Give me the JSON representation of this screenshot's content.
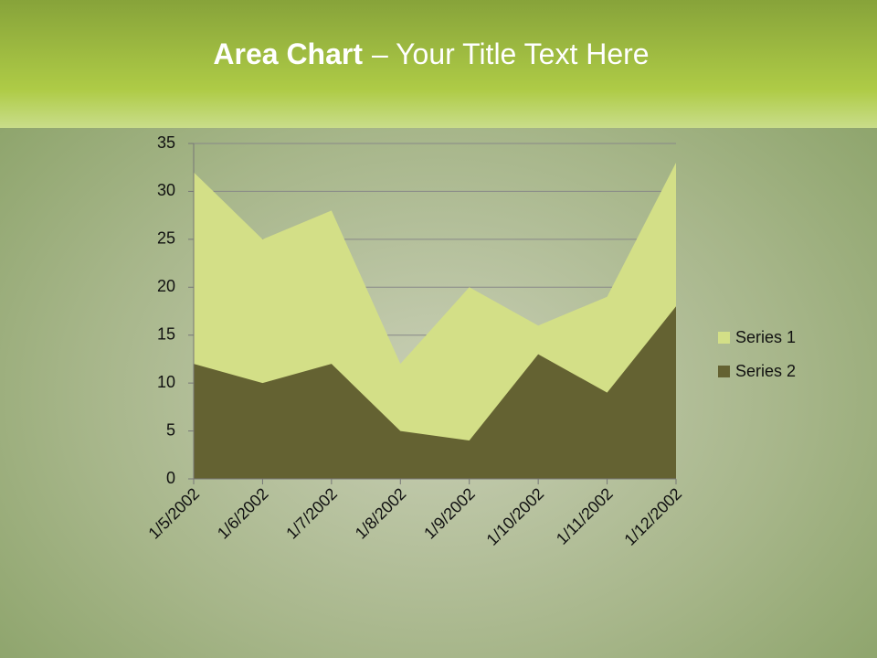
{
  "chart_data": {
    "type": "area",
    "title_parts": [
      "Area Chart",
      "– Your Title Text Here"
    ],
    "categories": [
      "1/5/2002",
      "1/6/2002",
      "1/7/2002",
      "1/8/2002",
      "1/9/2002",
      "1/10/2002",
      "1/11/2002",
      "1/12/2002"
    ],
    "series": [
      {
        "name": "Series 1",
        "color": "#d3df87",
        "values": [
          32,
          25,
          28,
          12,
          20,
          16,
          19,
          33
        ]
      },
      {
        "name": "Series 2",
        "color": "#646232",
        "values": [
          12,
          10,
          12,
          5,
          4,
          13,
          9,
          18
        ]
      }
    ],
    "ylim": [
      0,
      35
    ],
    "yticks": [
      0,
      5,
      10,
      15,
      20,
      25,
      30,
      35
    ],
    "grid": true,
    "legend": "right"
  }
}
